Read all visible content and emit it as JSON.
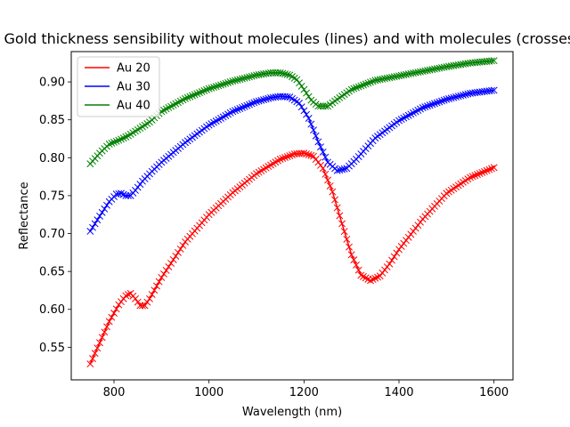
{
  "chart_data": {
    "type": "line",
    "title": "Gold thickness sensibility without molecules (lines) and with molecules (crosses)",
    "xlabel": "Wavelength (nm)",
    "ylabel": "Reflectance",
    "xlim": [
      710,
      1640
    ],
    "ylim": [
      0.507,
      0.94
    ],
    "xticks": [
      800,
      1000,
      1200,
      1400,
      1600
    ],
    "xtick_labels": [
      "800",
      "1000",
      "1200",
      "1400",
      "1600"
    ],
    "yticks": [
      0.55,
      0.6,
      0.65,
      0.7,
      0.75,
      0.8,
      0.85,
      0.9
    ],
    "ytick_labels": [
      "0.55",
      "0.60",
      "0.65",
      "0.70",
      "0.75",
      "0.80",
      "0.85",
      "0.90"
    ],
    "grid": false,
    "legend_position": "upper-left",
    "markers_for": "with molecules",
    "series": [
      {
        "name": "Au 20",
        "color": "#ff0000",
        "x": [
          750,
          770,
          790,
          810,
          825,
          835,
          845,
          855,
          865,
          875,
          900,
          950,
          1000,
          1050,
          1100,
          1150,
          1180,
          1200,
          1220,
          1240,
          1260,
          1280,
          1300,
          1320,
          1340,
          1360,
          1380,
          1400,
          1450,
          1500,
          1550,
          1600
        ],
        "y": [
          0.528,
          0.556,
          0.584,
          0.606,
          0.618,
          0.621,
          0.614,
          0.605,
          0.605,
          0.614,
          0.642,
          0.689,
          0.725,
          0.754,
          0.779,
          0.798,
          0.805,
          0.806,
          0.802,
          0.786,
          0.755,
          0.713,
          0.672,
          0.645,
          0.638,
          0.644,
          0.66,
          0.679,
          0.719,
          0.753,
          0.774,
          0.787
        ]
      },
      {
        "name": "Au 30",
        "color": "#0000ff",
        "x": [
          750,
          770,
          790,
          805,
          815,
          825,
          835,
          845,
          860,
          880,
          900,
          950,
          1000,
          1050,
          1100,
          1130,
          1150,
          1170,
          1190,
          1210,
          1230,
          1250,
          1270,
          1290,
          1310,
          1350,
          1400,
          1450,
          1500,
          1550,
          1600
        ],
        "y": [
          0.703,
          0.723,
          0.742,
          0.752,
          0.753,
          0.75,
          0.75,
          0.757,
          0.769,
          0.782,
          0.794,
          0.82,
          0.843,
          0.861,
          0.874,
          0.879,
          0.881,
          0.88,
          0.872,
          0.852,
          0.821,
          0.794,
          0.783,
          0.786,
          0.798,
          0.826,
          0.849,
          0.866,
          0.877,
          0.885,
          0.889
        ]
      },
      {
        "name": "Au 40",
        "color": "#008000",
        "x": [
          750,
          770,
          790,
          810,
          830,
          850,
          875,
          900,
          950,
          1000,
          1050,
          1100,
          1130,
          1150,
          1170,
          1185,
          1200,
          1215,
          1230,
          1250,
          1270,
          1300,
          1350,
          1400,
          1450,
          1500,
          1550,
          1600
        ],
        "y": [
          0.792,
          0.806,
          0.818,
          0.823,
          0.829,
          0.837,
          0.847,
          0.861,
          0.878,
          0.891,
          0.901,
          0.909,
          0.912,
          0.912,
          0.909,
          0.903,
          0.89,
          0.876,
          0.868,
          0.868,
          0.877,
          0.89,
          0.902,
          0.908,
          0.914,
          0.92,
          0.925,
          0.928
        ]
      }
    ]
  }
}
